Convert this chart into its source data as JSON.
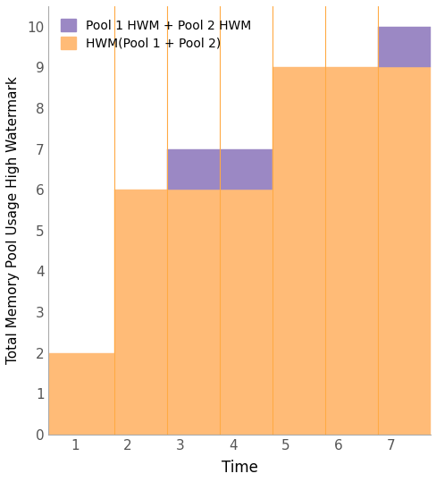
{
  "title": "",
  "xlabel": "Time",
  "ylabel": "Total Memory Pool Usage High Watermark",
  "xlim": [
    0.5,
    7.75
  ],
  "ylim": [
    0,
    10.5
  ],
  "xticks": [
    1,
    2,
    3,
    4,
    5,
    6,
    7
  ],
  "yticks": [
    0,
    1,
    2,
    3,
    4,
    5,
    6,
    7,
    8,
    9,
    10
  ],
  "background_color": "#ffffff",
  "bar_color_orange": "#FFBB77",
  "bar_color_purple": "#9B88C4",
  "legend_label_purple": "Pool 1 HWM + Pool 2 HWM",
  "legend_label_orange": "HWM(Pool 1 + Pool 2)",
  "bars": [
    {
      "x_start": 0.5,
      "x_end": 1.75,
      "orange_height": 2,
      "purple_height": 0
    },
    {
      "x_start": 1.75,
      "x_end": 2.75,
      "orange_height": 6,
      "purple_height": 0
    },
    {
      "x_start": 2.75,
      "x_end": 3.75,
      "orange_height": 6,
      "purple_height": 1
    },
    {
      "x_start": 3.75,
      "x_end": 4.75,
      "orange_height": 6,
      "purple_height": 1
    },
    {
      "x_start": 4.75,
      "x_end": 5.75,
      "orange_height": 9,
      "purple_height": 0
    },
    {
      "x_start": 5.75,
      "x_end": 6.75,
      "orange_height": 9,
      "purple_height": 0
    },
    {
      "x_start": 6.75,
      "x_end": 7.75,
      "orange_height": 9,
      "purple_height": 1
    }
  ],
  "divider_color": "#FFAA44",
  "divider_linewidth": 0.8
}
